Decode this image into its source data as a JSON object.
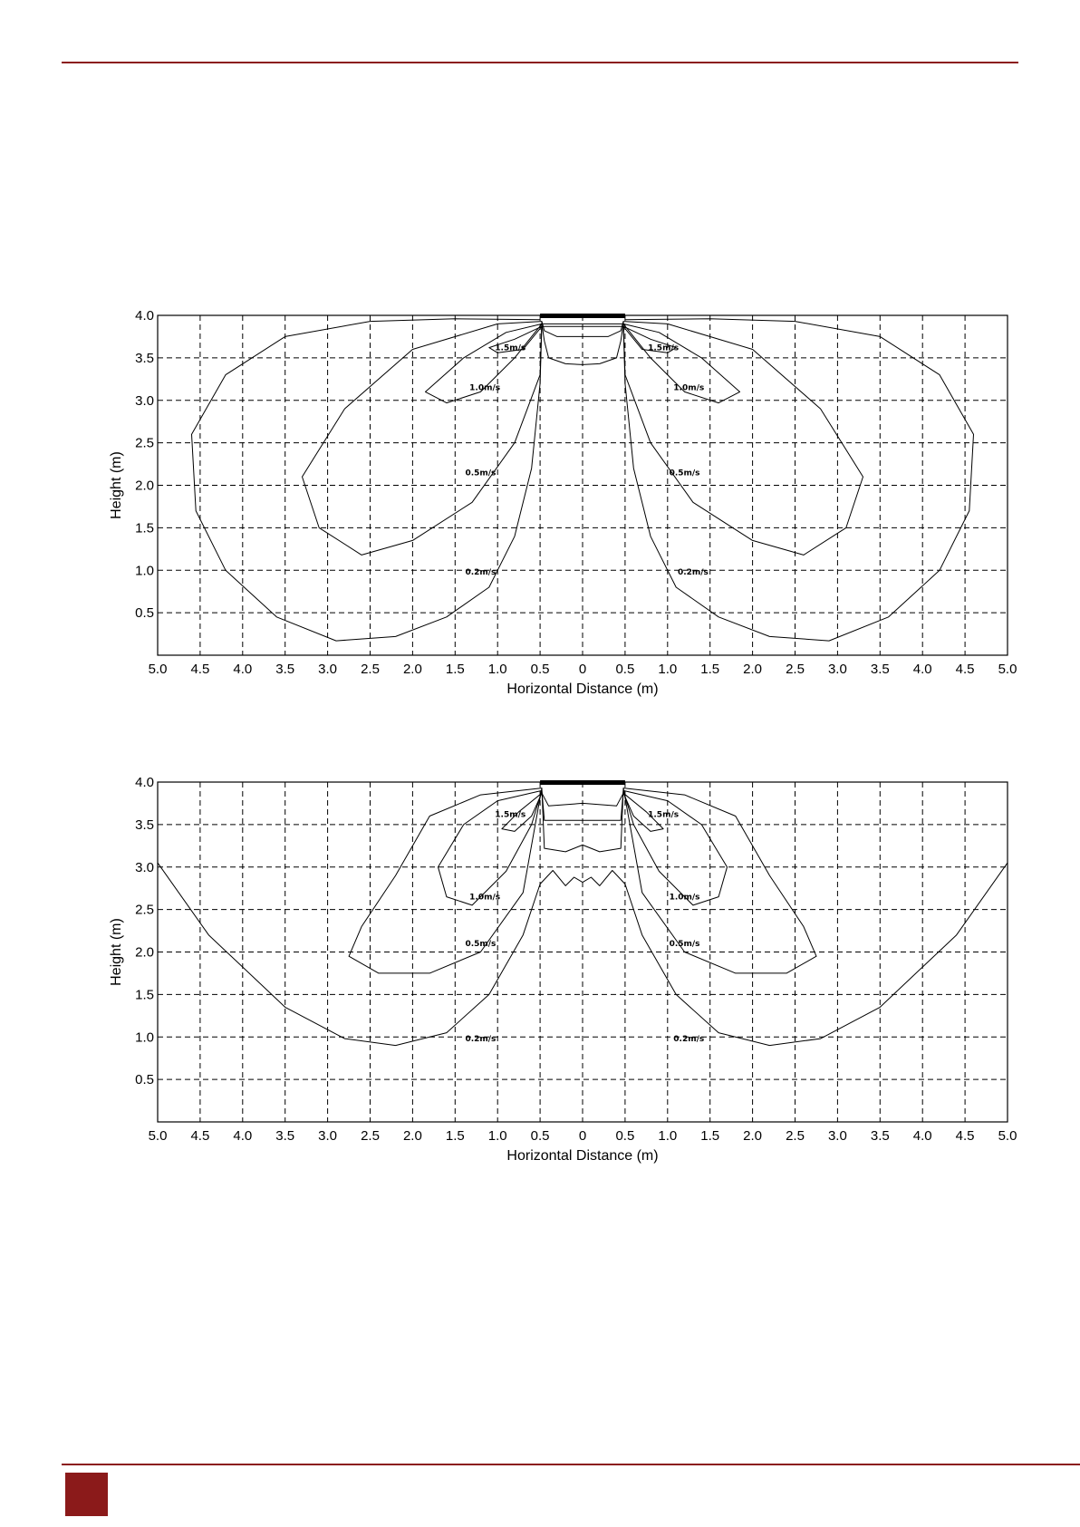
{
  "page": {
    "accent_color": "#8b1a1a"
  },
  "chart_data": [
    {
      "type": "contour",
      "xlabel": "Horizontal Distance (m)",
      "ylabel": "Height (m)",
      "xlim": [
        -5,
        5
      ],
      "ylim": [
        0,
        4
      ],
      "x_tick_labels": [
        "5.0",
        "4.5",
        "4.0",
        "3.5",
        "3.0",
        "2.5",
        "2.0",
        "1.5",
        "1.0",
        "0.5",
        "0",
        "0.5",
        "1.0",
        "1.5",
        "2.0",
        "2.5",
        "3.0",
        "3.5",
        "4.0",
        "4.5",
        "5.0"
      ],
      "y_tick_labels": [
        "4.0",
        "3.5",
        "3.0",
        "2.5",
        "2.0",
        "1.5",
        "1.0",
        "0.5"
      ],
      "grid": true,
      "source": {
        "x_range": [
          -0.5,
          0.5
        ],
        "y": 4.0
      },
      "contours": [
        {
          "label": "0.2m/s",
          "label_points": [
            [
              -1.2,
              0.98
            ],
            [
              1.3,
              0.98
            ]
          ],
          "points": [
            [
              -0.5,
              3.95
            ],
            [
              -1.5,
              3.96
            ],
            [
              -2.5,
              3.93
            ],
            [
              -3.5,
              3.75
            ],
            [
              -4.2,
              3.3
            ],
            [
              -4.6,
              2.6
            ],
            [
              -4.55,
              1.7
            ],
            [
              -4.2,
              1.0
            ],
            [
              -3.6,
              0.45
            ],
            [
              -2.9,
              0.17
            ],
            [
              -2.2,
              0.22
            ],
            [
              -1.6,
              0.45
            ],
            [
              -1.1,
              0.8
            ],
            [
              -0.8,
              1.4
            ],
            [
              -0.6,
              2.2
            ],
            [
              -0.5,
              3.2
            ],
            [
              -0.48,
              3.9
            ],
            [
              -0.45,
              3.7
            ],
            [
              -0.4,
              3.5
            ],
            [
              -0.2,
              3.43
            ],
            [
              0,
              3.42
            ],
            [
              0.2,
              3.43
            ],
            [
              0.4,
              3.5
            ],
            [
              0.45,
              3.7
            ],
            [
              0.48,
              3.9
            ],
            [
              0.5,
              3.2
            ],
            [
              0.6,
              2.2
            ],
            [
              0.8,
              1.4
            ],
            [
              1.1,
              0.8
            ],
            [
              1.6,
              0.45
            ],
            [
              2.2,
              0.22
            ],
            [
              2.9,
              0.17
            ],
            [
              3.6,
              0.45
            ],
            [
              4.2,
              1.0
            ],
            [
              4.55,
              1.7
            ],
            [
              4.6,
              2.6
            ],
            [
              4.2,
              3.3
            ],
            [
              3.5,
              3.75
            ],
            [
              2.5,
              3.93
            ],
            [
              1.5,
              3.96
            ],
            [
              0.5,
              3.95
            ]
          ]
        },
        {
          "label": "0.5m/s",
          "label_points": [
            [
              -1.2,
              2.15
            ],
            [
              1.2,
              2.15
            ]
          ],
          "points": [
            [
              -0.48,
              3.93
            ],
            [
              -1.0,
              3.9
            ],
            [
              -2.0,
              3.6
            ],
            [
              -2.8,
              2.9
            ],
            [
              -3.3,
              2.1
            ],
            [
              -3.1,
              1.5
            ],
            [
              -2.6,
              1.18
            ],
            [
              -2.0,
              1.35
            ],
            [
              -1.3,
              1.8
            ],
            [
              -0.8,
              2.5
            ],
            [
              -0.5,
              3.3
            ],
            [
              -0.48,
              3.93
            ],
            [
              -0.45,
              3.82
            ],
            [
              -0.3,
              3.75
            ],
            [
              0,
              3.75
            ],
            [
              0.3,
              3.75
            ],
            [
              0.45,
              3.82
            ],
            [
              0.48,
              3.93
            ],
            [
              0.5,
              3.3
            ],
            [
              0.8,
              2.5
            ],
            [
              1.3,
              1.8
            ],
            [
              2.0,
              1.35
            ],
            [
              2.6,
              1.18
            ],
            [
              3.1,
              1.5
            ],
            [
              3.3,
              2.1
            ],
            [
              2.8,
              2.9
            ],
            [
              2.0,
              3.6
            ],
            [
              1.0,
              3.9
            ],
            [
              0.48,
              3.93
            ]
          ]
        },
        {
          "label": "1.0m/s",
          "label_points": [
            [
              -1.15,
              3.15
            ],
            [
              1.25,
              3.15
            ]
          ],
          "points": [
            [
              -0.48,
              3.9
            ],
            [
              -0.9,
              3.8
            ],
            [
              -1.4,
              3.5
            ],
            [
              -1.85,
              3.1
            ],
            [
              -1.6,
              2.97
            ],
            [
              -1.2,
              3.1
            ],
            [
              -0.8,
              3.5
            ],
            [
              -0.48,
              3.9
            ],
            [
              0.48,
              3.9
            ],
            [
              0.8,
              3.5
            ],
            [
              1.2,
              3.1
            ],
            [
              1.6,
              2.97
            ],
            [
              1.85,
              3.1
            ],
            [
              1.4,
              3.5
            ],
            [
              0.9,
              3.8
            ],
            [
              0.48,
              3.9
            ]
          ]
        },
        {
          "label": "1.5m/s",
          "label_points": [
            [
              -0.85,
              3.62
            ],
            [
              0.95,
              3.62
            ]
          ],
          "points": [
            [
              -0.48,
              3.87
            ],
            [
              -0.8,
              3.72
            ],
            [
              -1.1,
              3.62
            ],
            [
              -1.0,
              3.56
            ],
            [
              -0.7,
              3.6
            ],
            [
              -0.48,
              3.87
            ],
            [
              0.48,
              3.87
            ],
            [
              0.7,
              3.6
            ],
            [
              1.0,
              3.56
            ],
            [
              1.1,
              3.62
            ],
            [
              0.8,
              3.72
            ],
            [
              0.48,
              3.87
            ]
          ]
        }
      ]
    },
    {
      "type": "contour",
      "xlabel": "Horizontal Distance (m)",
      "ylabel": "Height (m)",
      "xlim": [
        -5,
        5
      ],
      "ylim": [
        0,
        4
      ],
      "x_tick_labels": [
        "5.0",
        "4.5",
        "4.0",
        "3.5",
        "3.0",
        "2.5",
        "2.0",
        "1.5",
        "1.0",
        "0.5",
        "0",
        "0.5",
        "1.0",
        "1.5",
        "2.0",
        "2.5",
        "3.0",
        "3.5",
        "4.0",
        "4.5",
        "5.0"
      ],
      "y_tick_labels": [
        "4.0",
        "3.5",
        "3.0",
        "2.5",
        "2.0",
        "1.5",
        "1.0",
        "0.5"
      ],
      "grid": true,
      "source": {
        "x_range": [
          -0.5,
          0.5
        ],
        "y": 4.0
      },
      "contours": [
        {
          "label": "0.2m/s",
          "label_points": [
            [
              -1.2,
              0.98
            ],
            [
              1.25,
              0.98
            ]
          ],
          "points": [
            [
              -5.0,
              3.05
            ],
            [
              -4.4,
              2.2
            ],
            [
              -3.5,
              1.35
            ],
            [
              -2.8,
              0.98
            ],
            [
              -2.2,
              0.9
            ],
            [
              -1.6,
              1.05
            ],
            [
              -1.1,
              1.5
            ],
            [
              -0.7,
              2.2
            ],
            [
              -0.5,
              2.8
            ],
            [
              -0.35,
              2.96
            ],
            [
              -0.2,
              2.78
            ],
            [
              -0.1,
              2.88
            ],
            [
              0,
              2.82
            ],
            [
              0.1,
              2.88
            ],
            [
              0.2,
              2.78
            ],
            [
              0.35,
              2.96
            ],
            [
              0.5,
              2.8
            ],
            [
              0.7,
              2.2
            ],
            [
              1.1,
              1.5
            ],
            [
              1.6,
              1.05
            ],
            [
              2.2,
              0.9
            ],
            [
              2.8,
              0.98
            ],
            [
              3.5,
              1.35
            ],
            [
              4.4,
              2.2
            ],
            [
              5.0,
              3.05
            ]
          ]
        },
        {
          "label": "0.5m/s",
          "label_points": [
            [
              -1.2,
              2.1
            ],
            [
              1.2,
              2.1
            ]
          ],
          "points": [
            [
              -0.48,
              3.93
            ],
            [
              -1.2,
              3.85
            ],
            [
              -1.8,
              3.6
            ],
            [
              -2.2,
              2.9
            ],
            [
              -2.6,
              2.3
            ],
            [
              -2.75,
              1.95
            ],
            [
              -2.4,
              1.75
            ],
            [
              -1.8,
              1.75
            ],
            [
              -1.2,
              2.0
            ],
            [
              -0.7,
              2.7
            ],
            [
              -0.48,
              3.93
            ],
            [
              -0.45,
              3.22
            ],
            [
              -0.2,
              3.18
            ],
            [
              0,
              3.26
            ],
            [
              0.2,
              3.18
            ],
            [
              0.45,
              3.22
            ],
            [
              0.48,
              3.93
            ],
            [
              0.7,
              2.7
            ],
            [
              1.2,
              2.0
            ],
            [
              1.8,
              1.75
            ],
            [
              2.4,
              1.75
            ],
            [
              2.75,
              1.95
            ],
            [
              2.6,
              2.3
            ],
            [
              2.2,
              2.9
            ],
            [
              1.8,
              3.6
            ],
            [
              1.2,
              3.85
            ],
            [
              0.48,
              3.93
            ]
          ]
        },
        {
          "label": "1.0m/s",
          "label_points": [
            [
              -1.15,
              2.65
            ],
            [
              1.2,
              2.65
            ]
          ],
          "points": [
            [
              -0.48,
              3.9
            ],
            [
              -1.0,
              3.78
            ],
            [
              -1.4,
              3.5
            ],
            [
              -1.7,
              3.0
            ],
            [
              -1.6,
              2.65
            ],
            [
              -1.3,
              2.55
            ],
            [
              -0.9,
              2.95
            ],
            [
              -0.6,
              3.5
            ],
            [
              -0.48,
              3.9
            ],
            [
              -0.45,
              3.55
            ],
            [
              -0.1,
              3.55
            ],
            [
              0.1,
              3.55
            ],
            [
              0.45,
              3.55
            ],
            [
              0.48,
              3.9
            ],
            [
              0.6,
              3.5
            ],
            [
              0.9,
              2.95
            ],
            [
              1.3,
              2.55
            ],
            [
              1.6,
              2.65
            ],
            [
              1.7,
              3.0
            ],
            [
              1.4,
              3.5
            ],
            [
              1.0,
              3.78
            ],
            [
              0.48,
              3.9
            ]
          ]
        },
        {
          "label": "1.5m/s",
          "label_points": [
            [
              -0.85,
              3.62
            ],
            [
              0.95,
              3.62
            ]
          ],
          "points": [
            [
              -0.48,
              3.87
            ],
            [
              -0.75,
              3.65
            ],
            [
              -0.95,
              3.45
            ],
            [
              -0.8,
              3.42
            ],
            [
              -0.6,
              3.6
            ],
            [
              -0.48,
              3.87
            ],
            [
              -0.4,
              3.72
            ],
            [
              0,
              3.75
            ],
            [
              0.4,
              3.72
            ],
            [
              0.48,
              3.87
            ],
            [
              0.6,
              3.6
            ],
            [
              0.8,
              3.42
            ],
            [
              0.95,
              3.45
            ],
            [
              0.75,
              3.65
            ],
            [
              0.48,
              3.87
            ]
          ]
        }
      ]
    }
  ]
}
